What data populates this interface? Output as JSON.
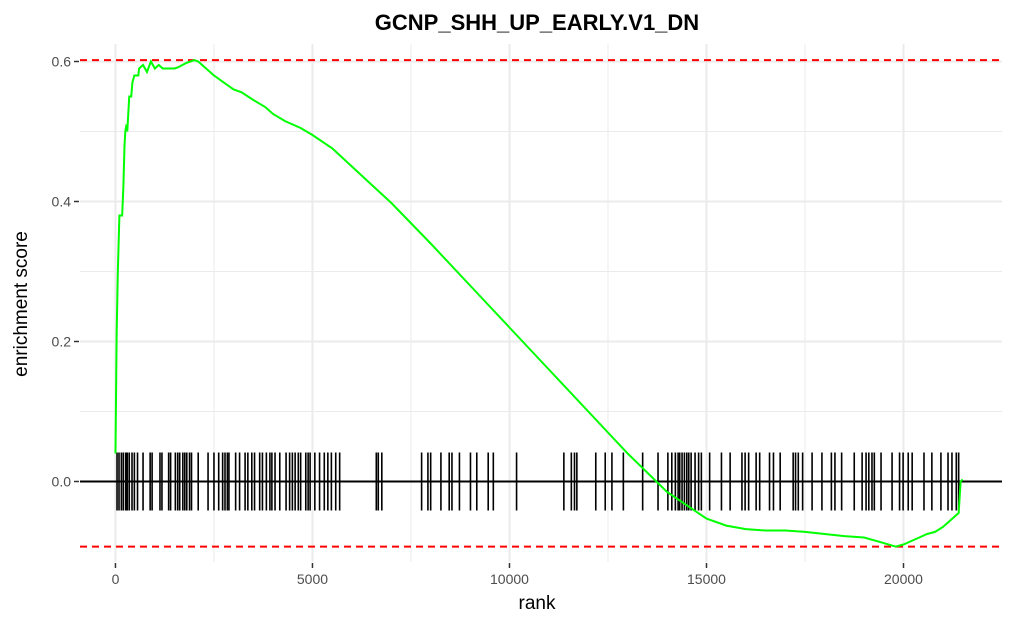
{
  "chart_data": {
    "type": "line",
    "title": "GCNP_SHH_UP_EARLY.V1_DN",
    "xlabel": "rank",
    "ylabel": "enrichment score",
    "xlim": [
      -900,
      22500
    ],
    "ylim": [
      -0.115,
      0.625
    ],
    "x_ticks": [
      0,
      5000,
      10000,
      15000,
      20000
    ],
    "y_ticks": [
      0.0,
      0.2,
      0.4,
      0.6
    ],
    "y_tick_labels": [
      "0.0",
      "0.2",
      "0.4",
      "0.6"
    ],
    "grid": true,
    "colors": {
      "curve": "#00ff00",
      "threshold": "#ff0000",
      "rug": "#000000",
      "zero_line": "#000000",
      "grid": "#ebebeb"
    },
    "thresholds": [
      0.602,
      -0.093
    ],
    "series": [
      {
        "x": [
          0,
          30,
          60,
          100,
          130,
          150,
          170,
          200,
          230,
          250,
          280,
          300,
          350,
          400,
          430,
          480,
          500,
          580,
          600,
          700,
          800,
          900,
          1000,
          1100,
          1200,
          1300,
          1400,
          1500,
          1600,
          1700,
          1800,
          1900,
          2000,
          2100,
          2200,
          2500,
          2800,
          3000,
          3200,
          3500,
          3800,
          4000,
          4300,
          4700,
          5000,
          5500,
          6000,
          7000,
          8000,
          9000,
          10000,
          11000,
          12000,
          13000,
          14000,
          15000,
          15500,
          16000,
          16500,
          17000,
          17500,
          18000,
          18500,
          19000,
          19500,
          19800,
          20000,
          20200,
          20400,
          20600,
          20800,
          21000,
          21100,
          21200,
          21300,
          21400,
          21450,
          21500
        ],
        "y": [
          0.04,
          0.21,
          0.3,
          0.38,
          0.38,
          0.38,
          0.38,
          0.42,
          0.48,
          0.5,
          0.51,
          0.5,
          0.55,
          0.55,
          0.57,
          0.58,
          0.58,
          0.58,
          0.59,
          0.595,
          0.585,
          0.6,
          0.59,
          0.595,
          0.59,
          0.59,
          0.59,
          0.59,
          0.592,
          0.595,
          0.598,
          0.6,
          0.602,
          0.6,
          0.595,
          0.58,
          0.568,
          0.56,
          0.556,
          0.545,
          0.535,
          0.525,
          0.515,
          0.505,
          0.495,
          0.476,
          0.45,
          0.398,
          0.34,
          0.28,
          0.22,
          0.16,
          0.1,
          0.04,
          -0.015,
          -0.053,
          -0.063,
          -0.068,
          -0.07,
          -0.07,
          -0.072,
          -0.075,
          -0.078,
          -0.08,
          -0.088,
          -0.093,
          -0.09,
          -0.085,
          -0.08,
          -0.075,
          -0.072,
          -0.065,
          -0.06,
          -0.055,
          -0.05,
          -0.045,
          0.0,
          0.003
        ]
      }
    ],
    "hits": [
      40,
      90,
      150,
      200,
      260,
      300,
      350,
      420,
      480,
      560,
      700,
      880,
      930,
      1130,
      1180,
      1350,
      1400,
      1520,
      1580,
      1630,
      1710,
      1760,
      1810,
      1880,
      1930,
      2100,
      2350,
      2500,
      2620,
      2720,
      2780,
      2840,
      2880,
      3050,
      3150,
      3290,
      3360,
      3460,
      3530,
      3660,
      3730,
      3830,
      3920,
      3970,
      4050,
      4170,
      4330,
      4420,
      4490,
      4560,
      4640,
      4700,
      4830,
      4890,
      4940,
      5060,
      5180,
      5300,
      5390,
      5480,
      5590,
      5690,
      6620,
      6670,
      6760,
      7770,
      7930,
      8000,
      8260,
      8470,
      8540,
      8730,
      9010,
      9170,
      9460,
      9590,
      10180,
      11380,
      11570,
      11650,
      11710,
      12190,
      12430,
      12600,
      12890,
      13380,
      13770,
      14020,
      14120,
      14210,
      14280,
      14320,
      14380,
      14440,
      14500,
      14550,
      14610,
      14710,
      14800,
      14870,
      15080,
      15380,
      15600,
      15900,
      15980,
      16070,
      16260,
      16350,
      16600,
      16700,
      16870,
      17200,
      17260,
      17330,
      17440,
      17680,
      17930,
      18170,
      18260,
      18430,
      18750,
      18950,
      19050,
      19120,
      19200,
      19260,
      19430,
      19710,
      19900,
      19990,
      20120,
      20220,
      20520,
      20720,
      20950,
      21130,
      21230,
      21340,
      21400
    ]
  }
}
